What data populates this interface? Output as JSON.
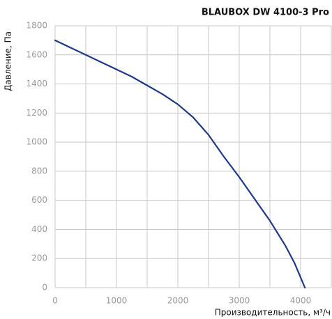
{
  "chart_data": {
    "type": "line",
    "title": "BLAUBOX DW 4100-3 Pro",
    "xlabel": "Производительность, м³/ч",
    "ylabel": "Давление, Па",
    "x": [
      0,
      250,
      500,
      750,
      1000,
      1250,
      1500,
      1750,
      2000,
      2250,
      2500,
      2750,
      3000,
      3250,
      3500,
      3750,
      3900,
      4070
    ],
    "values": [
      1700,
      1650,
      1600,
      1550,
      1500,
      1450,
      1390,
      1330,
      1260,
      1170,
      1050,
      900,
      760,
      610,
      460,
      290,
      170,
      0
    ],
    "color": "#1d3a8a",
    "xlim": [
      0,
      4500
    ],
    "xticks": [
      0,
      1000,
      2000,
      3000,
      4000
    ],
    "x_minor_ticks": [
      500,
      1500,
      2500,
      3500,
      4500
    ],
    "ylim": [
      0,
      1800
    ],
    "yticks": [
      0,
      200,
      400,
      600,
      800,
      1000,
      1200,
      1400,
      1600,
      1800
    ],
    "grid": true
  }
}
